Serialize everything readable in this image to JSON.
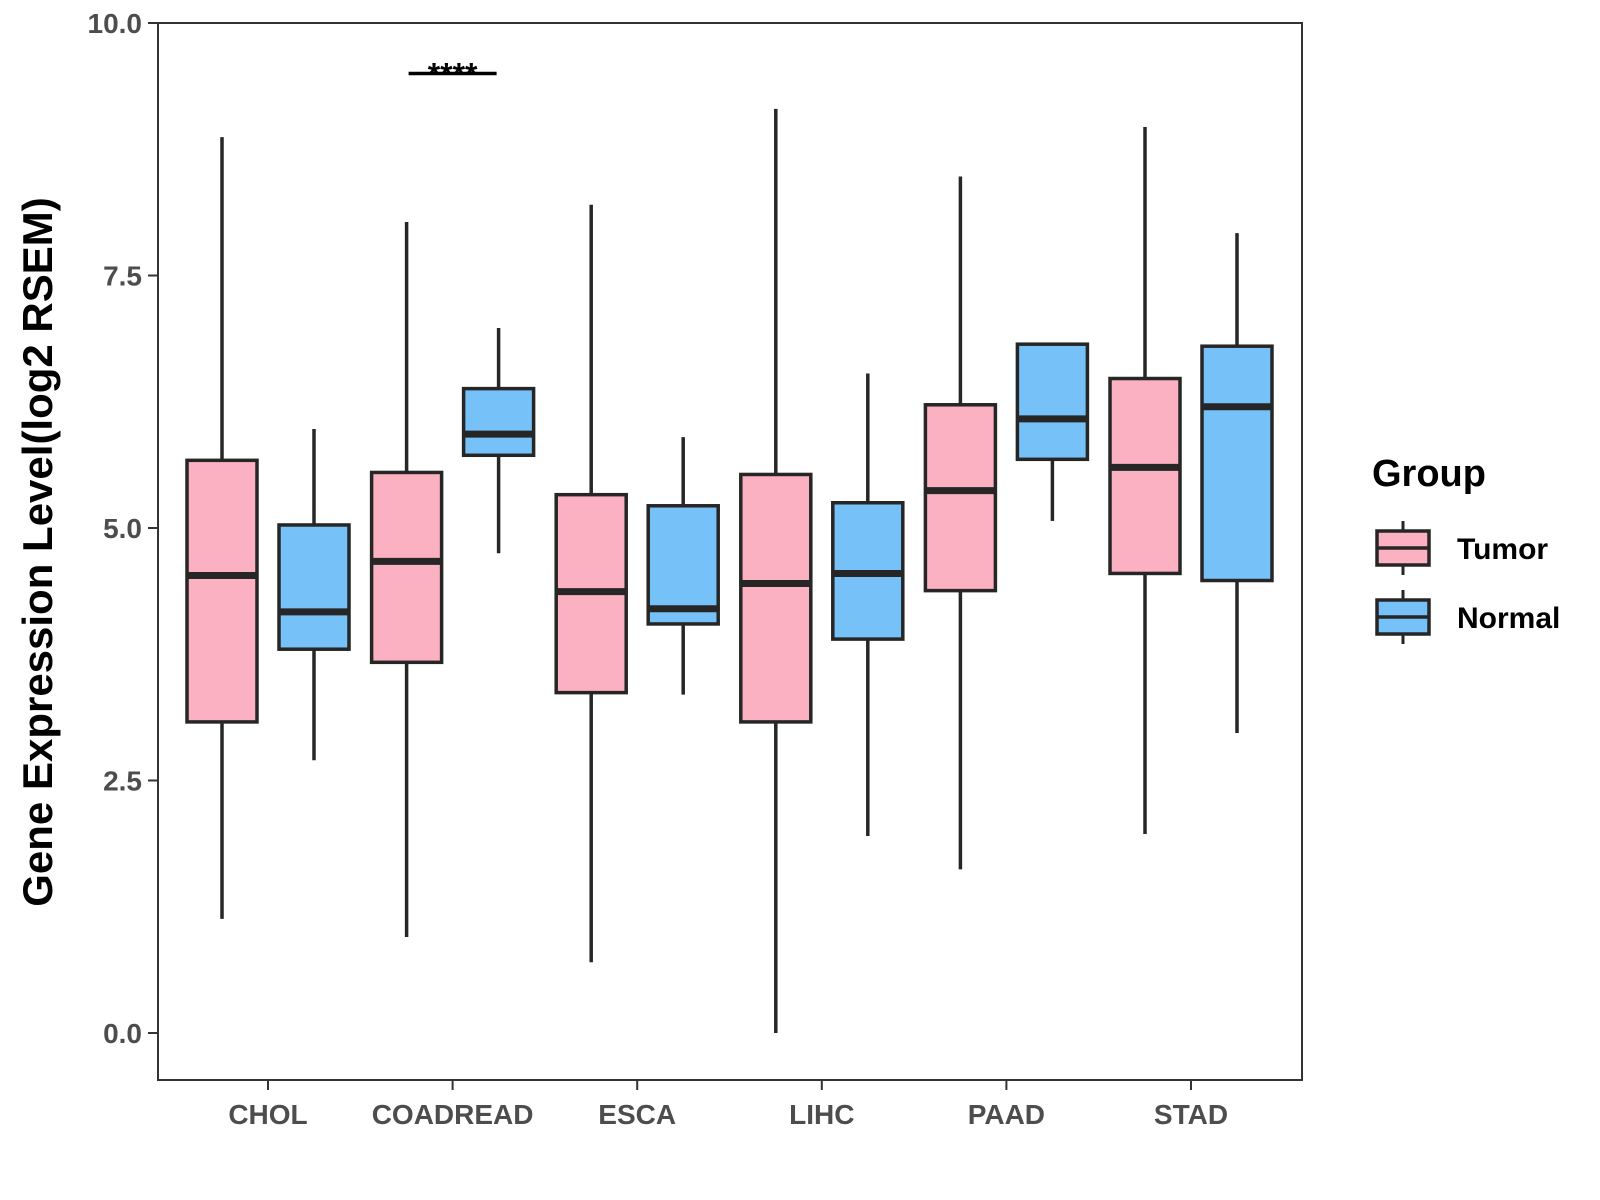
{
  "chart_data": {
    "type": "boxplot",
    "ylabel": "Gene Expression Level(log2 RSEM)",
    "xlabel": "",
    "ylim": [
      -0.47,
      10.0
    ],
    "yticks": [
      "0.0",
      "2.5",
      "5.0",
      "7.5",
      "10.0"
    ],
    "ytick_values": [
      0,
      2.5,
      5.0,
      7.5,
      10.0
    ],
    "categories": [
      "CHOL",
      "COADREAD",
      "ESCA",
      "LIHC",
      "PAAD",
      "STAD"
    ],
    "legend": {
      "title": "Group",
      "position": "right",
      "entries": [
        "Tumor",
        "Normal"
      ]
    },
    "colors": {
      "Tumor": "#fbb1c1",
      "Normal": "#76c1f7",
      "outline": "#262626"
    },
    "series": [
      {
        "name": "Tumor",
        "boxes": [
          {
            "min": 1.13,
            "q1": 3.08,
            "median": 4.53,
            "q3": 5.67,
            "max": 8.87
          },
          {
            "min": 0.95,
            "q1": 3.67,
            "median": 4.67,
            "q3": 5.55,
            "max": 8.03
          },
          {
            "min": 0.7,
            "q1": 3.37,
            "median": 4.37,
            "q3": 5.33,
            "max": 8.2
          },
          {
            "min": 0.0,
            "q1": 3.08,
            "median": 4.45,
            "q3": 5.53,
            "max": 9.15
          },
          {
            "min": 1.62,
            "q1": 4.38,
            "median": 5.37,
            "q3": 6.22,
            "max": 8.48
          },
          {
            "min": 1.97,
            "q1": 4.55,
            "median": 5.6,
            "q3": 6.48,
            "max": 8.97
          }
        ]
      },
      {
        "name": "Normal",
        "boxes": [
          {
            "min": 2.7,
            "q1": 3.8,
            "median": 4.17,
            "q3": 5.03,
            "max": 5.98
          },
          {
            "min": 4.75,
            "q1": 5.72,
            "median": 5.93,
            "q3": 6.38,
            "max": 6.98
          },
          {
            "min": 3.35,
            "q1": 4.05,
            "median": 4.2,
            "q3": 5.22,
            "max": 5.9
          },
          {
            "min": 1.95,
            "q1": 3.9,
            "median": 4.55,
            "q3": 5.25,
            "max": 6.53
          },
          {
            "min": 5.07,
            "q1": 5.68,
            "median": 6.08,
            "q3": 6.82,
            "max": 6.82
          },
          {
            "min": 2.97,
            "q1": 4.48,
            "median": 6.2,
            "q3": 6.8,
            "max": 7.92
          }
        ]
      }
    ],
    "annotations": [
      {
        "category": "COADREAD",
        "text": "****",
        "y": 9.5
      }
    ]
  }
}
